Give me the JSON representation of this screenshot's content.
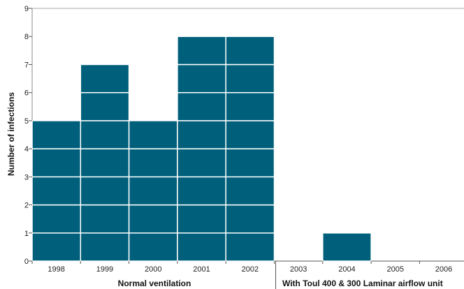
{
  "chart_data": {
    "type": "bar",
    "title": "",
    "xlabel": "",
    "ylabel": "Number of infections",
    "ylim": [
      0,
      9
    ],
    "yticks": [
      0,
      1,
      2,
      3,
      4,
      5,
      6,
      7,
      8,
      9
    ],
    "categories": [
      "1998",
      "1999",
      "2000",
      "2001",
      "2002",
      "2003",
      "2004",
      "2005",
      "2006"
    ],
    "values": [
      5,
      7,
      5,
      8,
      8,
      0,
      1,
      0,
      0
    ],
    "grid": false,
    "bar_color": "#005f7a",
    "unit_divider_color": "#ffffff",
    "groups": [
      {
        "label": "Normal ventilation",
        "categories": [
          "1998",
          "1999",
          "2000",
          "2001",
          "2002"
        ]
      },
      {
        "label": "With Toul 400 & 300 Laminar airflow unit",
        "categories": [
          "2003",
          "2004",
          "2005",
          "2006"
        ]
      }
    ]
  }
}
